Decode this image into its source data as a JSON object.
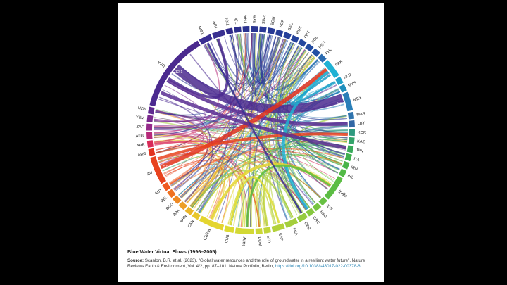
{
  "figure": {
    "title": "Blue Water Virtual Flows (1996–2005)",
    "source_label": "Source:",
    "source_text": "Scanlon, B.R. et al. (2023), \"Global water resources and the role of groundwater in a resilient water future\", Nature Reviews Earth & Environment, Vol. 4/2, pp. 87–101, Nature Portfolio, Berlin,",
    "source_url": "https://doi.org/10.1038/s43017-022-00378-6",
    "source_tail": "."
  },
  "diagram": {
    "type": "chord",
    "segments": [
      {
        "label": "USA",
        "color": "#4b2a8f"
      },
      {
        "label": "TWN",
        "color": "#3a2f92"
      },
      {
        "label": "TUR",
        "color": "#3a3091"
      },
      {
        "label": "TKM",
        "color": "#2f2a8a"
      },
      {
        "label": "TJK",
        "color": "#2d2f8c"
      },
      {
        "label": "THA",
        "color": "#2b3290"
      },
      {
        "label": "SYR",
        "color": "#2a3592"
      },
      {
        "label": "SWZ",
        "color": "#293895"
      },
      {
        "label": "SOM",
        "color": "#283a96"
      },
      {
        "label": "SGP",
        "color": "#273d98"
      },
      {
        "label": "SAU",
        "color": "#26409a"
      },
      {
        "label": "RUS",
        "color": "#25439c"
      },
      {
        "label": "PRT",
        "color": "#24479e"
      },
      {
        "label": "POL",
        "color": "#234ba0"
      },
      {
        "label": "PNG",
        "color": "#2250a3"
      },
      {
        "label": "PHL",
        "color": "#2a6aaf"
      },
      {
        "label": "PAK",
        "color": "#1fb2d4"
      },
      {
        "label": "NLD",
        "color": "#1fa0c8"
      },
      {
        "label": "MYS",
        "color": "#1f8fbd"
      },
      {
        "label": "MEX",
        "color": "#2a7fb8"
      },
      {
        "label": "MAR",
        "color": "#2f73ad"
      },
      {
        "label": "LBY",
        "color": "#3267a5"
      },
      {
        "label": "KOR",
        "color": "#2f9a7f"
      },
      {
        "label": "KAZ",
        "color": "#34a36a"
      },
      {
        "label": "JPN",
        "color": "#38aa5a"
      },
      {
        "label": "ITA",
        "color": "#3fb04e"
      },
      {
        "label": "IRN",
        "color": "#48b548"
      },
      {
        "label": "IRL",
        "color": "#52b946"
      },
      {
        "label": "India",
        "color": "#5cbd44"
      },
      {
        "label": "IDN",
        "color": "#68c143"
      },
      {
        "label": "HKG",
        "color": "#77c541"
      },
      {
        "label": "GRC",
        "color": "#86c83f"
      },
      {
        "label": "GBR",
        "color": "#95cb3e"
      },
      {
        "label": "FRA",
        "color": "#a4ce3c"
      },
      {
        "label": "ESP",
        "color": "#b3d23a"
      },
      {
        "label": "EGY",
        "color": "#c1d538"
      },
      {
        "label": "DOM",
        "color": "#cbd736"
      },
      {
        "label": "Germany",
        "color": "#d3d934"
      },
      {
        "label": "CUB",
        "color": "#dcda32"
      },
      {
        "label": "China",
        "color": "#e4d52f"
      },
      {
        "label": "CAN",
        "color": "#e8c72c"
      },
      {
        "label": "BRN",
        "color": "#ebb629"
      },
      {
        "label": "BRA",
        "color": "#ed9f26"
      },
      {
        "label": "BGD",
        "color": "#ee8a24"
      },
      {
        "label": "BEL",
        "color": "#ef7222"
      },
      {
        "label": "AUT",
        "color": "#ef5a21"
      },
      {
        "label": "AU",
        "color": "#e8431f"
      },
      {
        "label": "ARG",
        "color": "#e2331f"
      },
      {
        "label": "ARE",
        "color": "#d82a58"
      },
      {
        "label": "AFG",
        "color": "#b72a7a"
      },
      {
        "label": "ZAF",
        "color": "#952a8a"
      },
      {
        "label": "YEM",
        "color": "#7a2a8e"
      },
      {
        "label": "UZB",
        "color": "#5f2a90"
      }
    ],
    "arc_values": [
      {
        "segment": "USA",
        "text": "12.1"
      },
      {
        "segment": "USA",
        "text": "7.6"
      },
      {
        "segment": "AU",
        "text": "5.6"
      },
      {
        "segment": "CUB",
        "text": "3.3"
      },
      {
        "segment": "MEX",
        "text": "2.7"
      }
    ]
  }
}
